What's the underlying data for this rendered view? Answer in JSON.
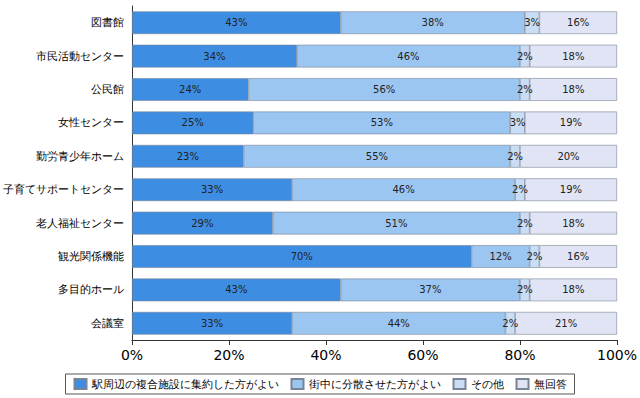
{
  "chart_data": {
    "type": "bar",
    "orientation": "horizontal",
    "stacked": true,
    "data_labels": true,
    "grid": false,
    "legend": "bottom",
    "categories": [
      "図書館",
      "市民活動センター",
      "公民館",
      "女性センター",
      "勤労青少年ホーム",
      "子育てサポートセンター",
      "老人福祉センター",
      "観光関係機能",
      "多目的ホール",
      "会議室"
    ],
    "series": [
      {
        "name": "駅周辺の複合施設に集約した方がよい",
        "color": "#3d8ee3",
        "values": [
          43,
          34,
          24,
          25,
          23,
          33,
          29,
          70,
          43,
          33
        ],
        "value_labels": [
          "43%",
          "34%",
          "24%",
          "25%",
          "23%",
          "33%",
          "29%",
          "70%",
          "43%",
          "33%"
        ]
      },
      {
        "name": "街中に分散させた方がよい",
        "color": "#9cc6f2",
        "values": [
          38,
          46,
          56,
          53,
          55,
          46,
          51,
          12,
          37,
          44
        ],
        "value_labels": [
          "38%",
          "46%",
          "56%",
          "53%",
          "55%",
          "46%",
          "51%",
          "12%",
          "37%",
          "44%"
        ]
      },
      {
        "name": "その他",
        "color": "#c9ddf5",
        "values": [
          3,
          2,
          2,
          3,
          2,
          2,
          2,
          2,
          2,
          2
        ],
        "value_labels": [
          "3%",
          "2%",
          "2%",
          "3%",
          "2%",
          "2%",
          "2%",
          "2%",
          "2%",
          "2%"
        ]
      },
      {
        "name": "無回答",
        "color": "#e0e4f4",
        "values": [
          16,
          18,
          18,
          19,
          20,
          19,
          18,
          16,
          18,
          21
        ],
        "value_labels": [
          "16%",
          "18%",
          "18%",
          "19%",
          "20%",
          "19%",
          "18%",
          "16%",
          "18%",
          "21%"
        ]
      }
    ],
    "xlim": [
      0,
      100
    ],
    "xticks": [
      {
        "value": 0,
        "label": "0%"
      },
      {
        "value": 20,
        "label": "20%"
      },
      {
        "value": 40,
        "label": "40%"
      },
      {
        "value": 60,
        "label": "60%"
      },
      {
        "value": 80,
        "label": "80%"
      },
      {
        "value": 100,
        "label": "100%"
      }
    ]
  }
}
